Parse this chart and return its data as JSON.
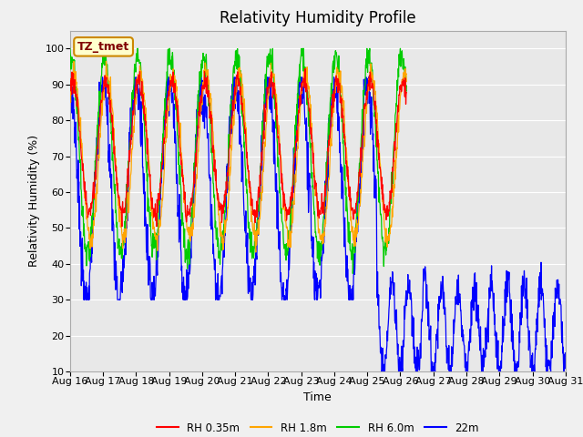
{
  "title": "Relativity Humidity Profile",
  "xlabel": "Time",
  "ylabel": "Relativity Humidity (%)",
  "ylim": [
    10,
    105
  ],
  "yticks": [
    10,
    20,
    30,
    40,
    50,
    60,
    70,
    80,
    90,
    100
  ],
  "background_color": "#f0f0f0",
  "plot_bg_color": "#e8e8e8",
  "annotation_text": "TZ_tmet",
  "annotation_bg": "#ffffcc",
  "annotation_border": "#cc8800",
  "annotation_text_color": "#800000",
  "legend_entries": [
    "RH 0.35m",
    "RH 1.8m",
    "RH 6.0m",
    "22m"
  ],
  "line_colors": [
    "#ff0000",
    "#ffa500",
    "#00cc00",
    "#0000ff"
  ],
  "xtick_labels": [
    "Aug 16",
    "Aug 17",
    "Aug 18",
    "Aug 19",
    "Aug 20",
    "Aug 21",
    "Aug 22",
    "Aug 23",
    "Aug 24",
    "Aug 25",
    "Aug 26",
    "Aug 27",
    "Aug 28",
    "Aug 29",
    "Aug 30",
    "Aug 31"
  ],
  "grid_color": "#ffffff",
  "title_fontsize": 12,
  "label_fontsize": 9,
  "tick_fontsize": 8
}
